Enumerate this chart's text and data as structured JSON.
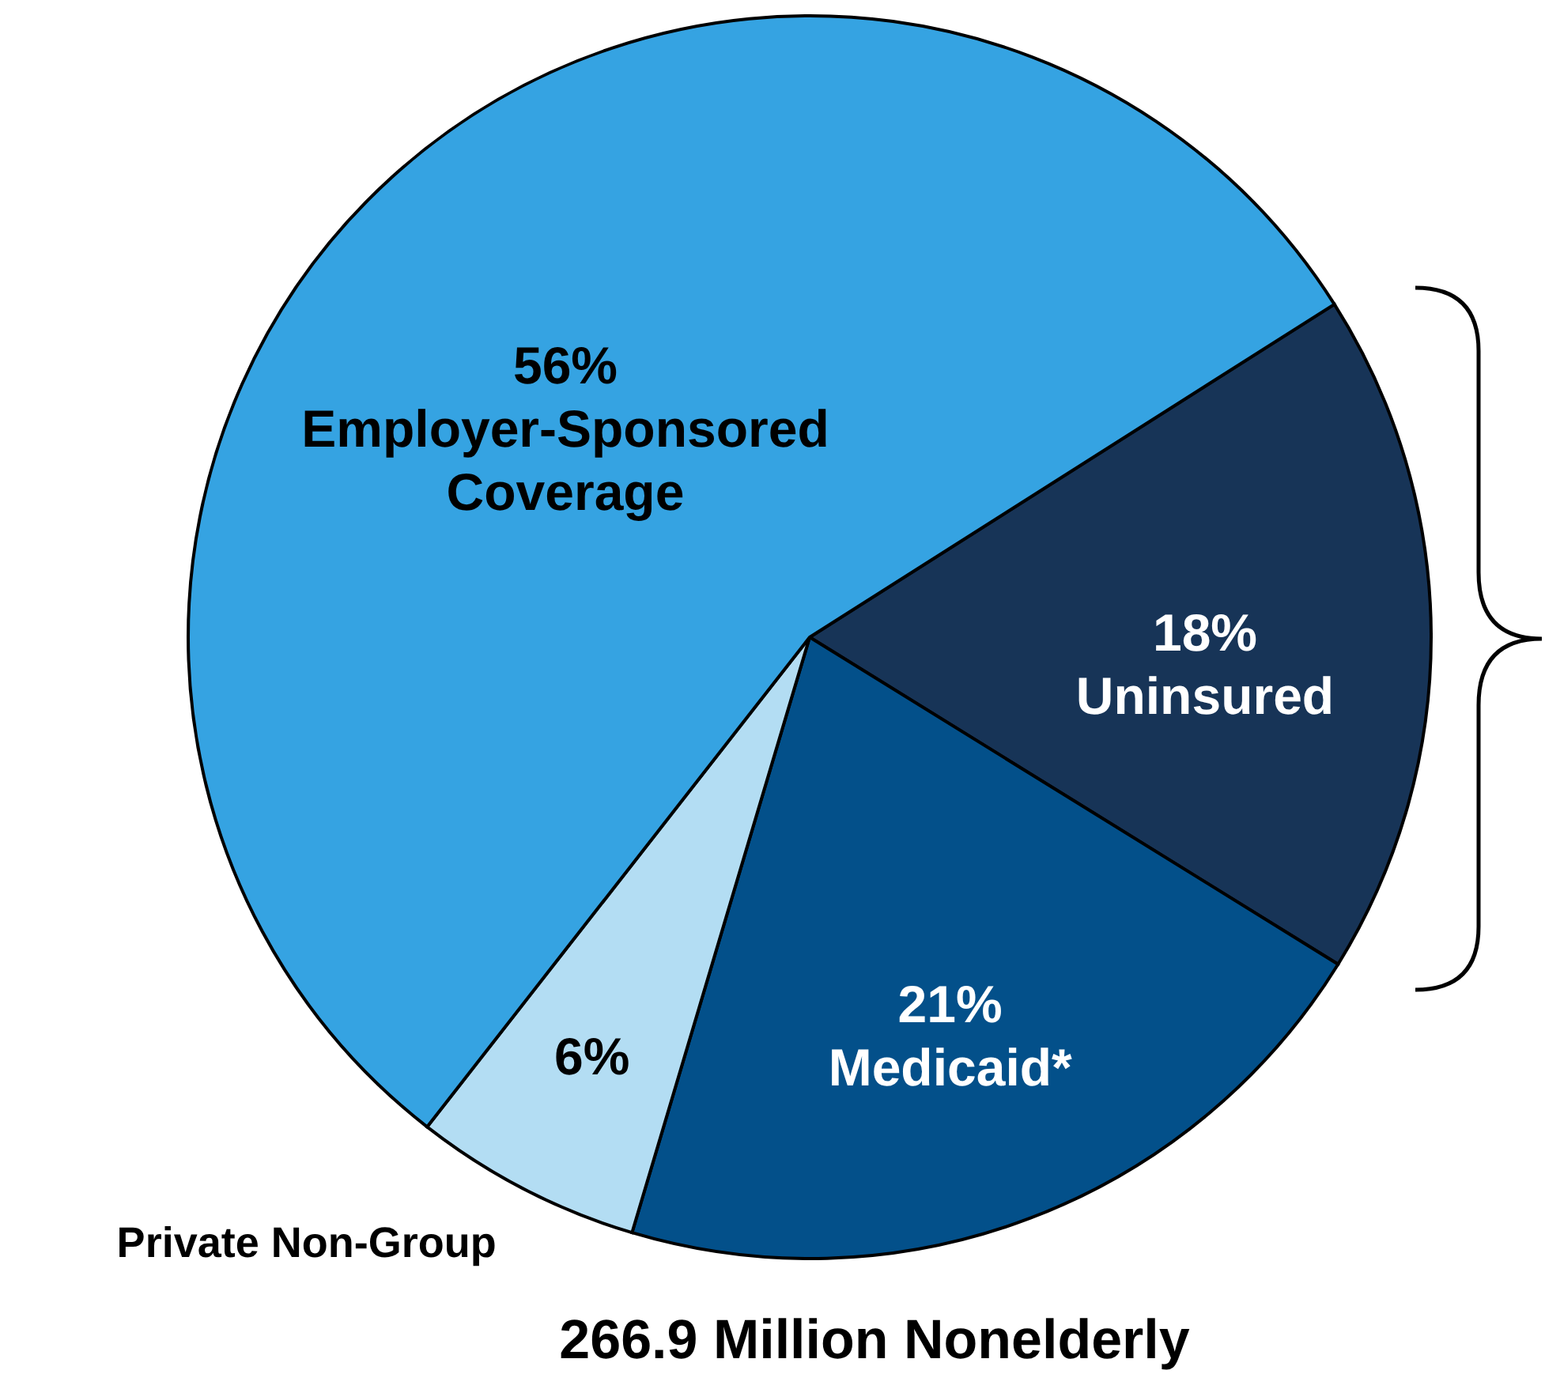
{
  "chart_data": {
    "type": "pie",
    "categories": [
      "Uninsured",
      "Medicaid*",
      "Private Non-Group",
      "Employer-Sponsored Coverage"
    ],
    "values": [
      18,
      21,
      6,
      56
    ],
    "value_labels": [
      "18%",
      "21%",
      "6%",
      "56%"
    ],
    "colors": [
      "#173457",
      "#03508a",
      "#b3ddf3",
      "#35a3e2"
    ],
    "annotations": [
      "266.9 Million Nonelderly"
    ]
  }
}
